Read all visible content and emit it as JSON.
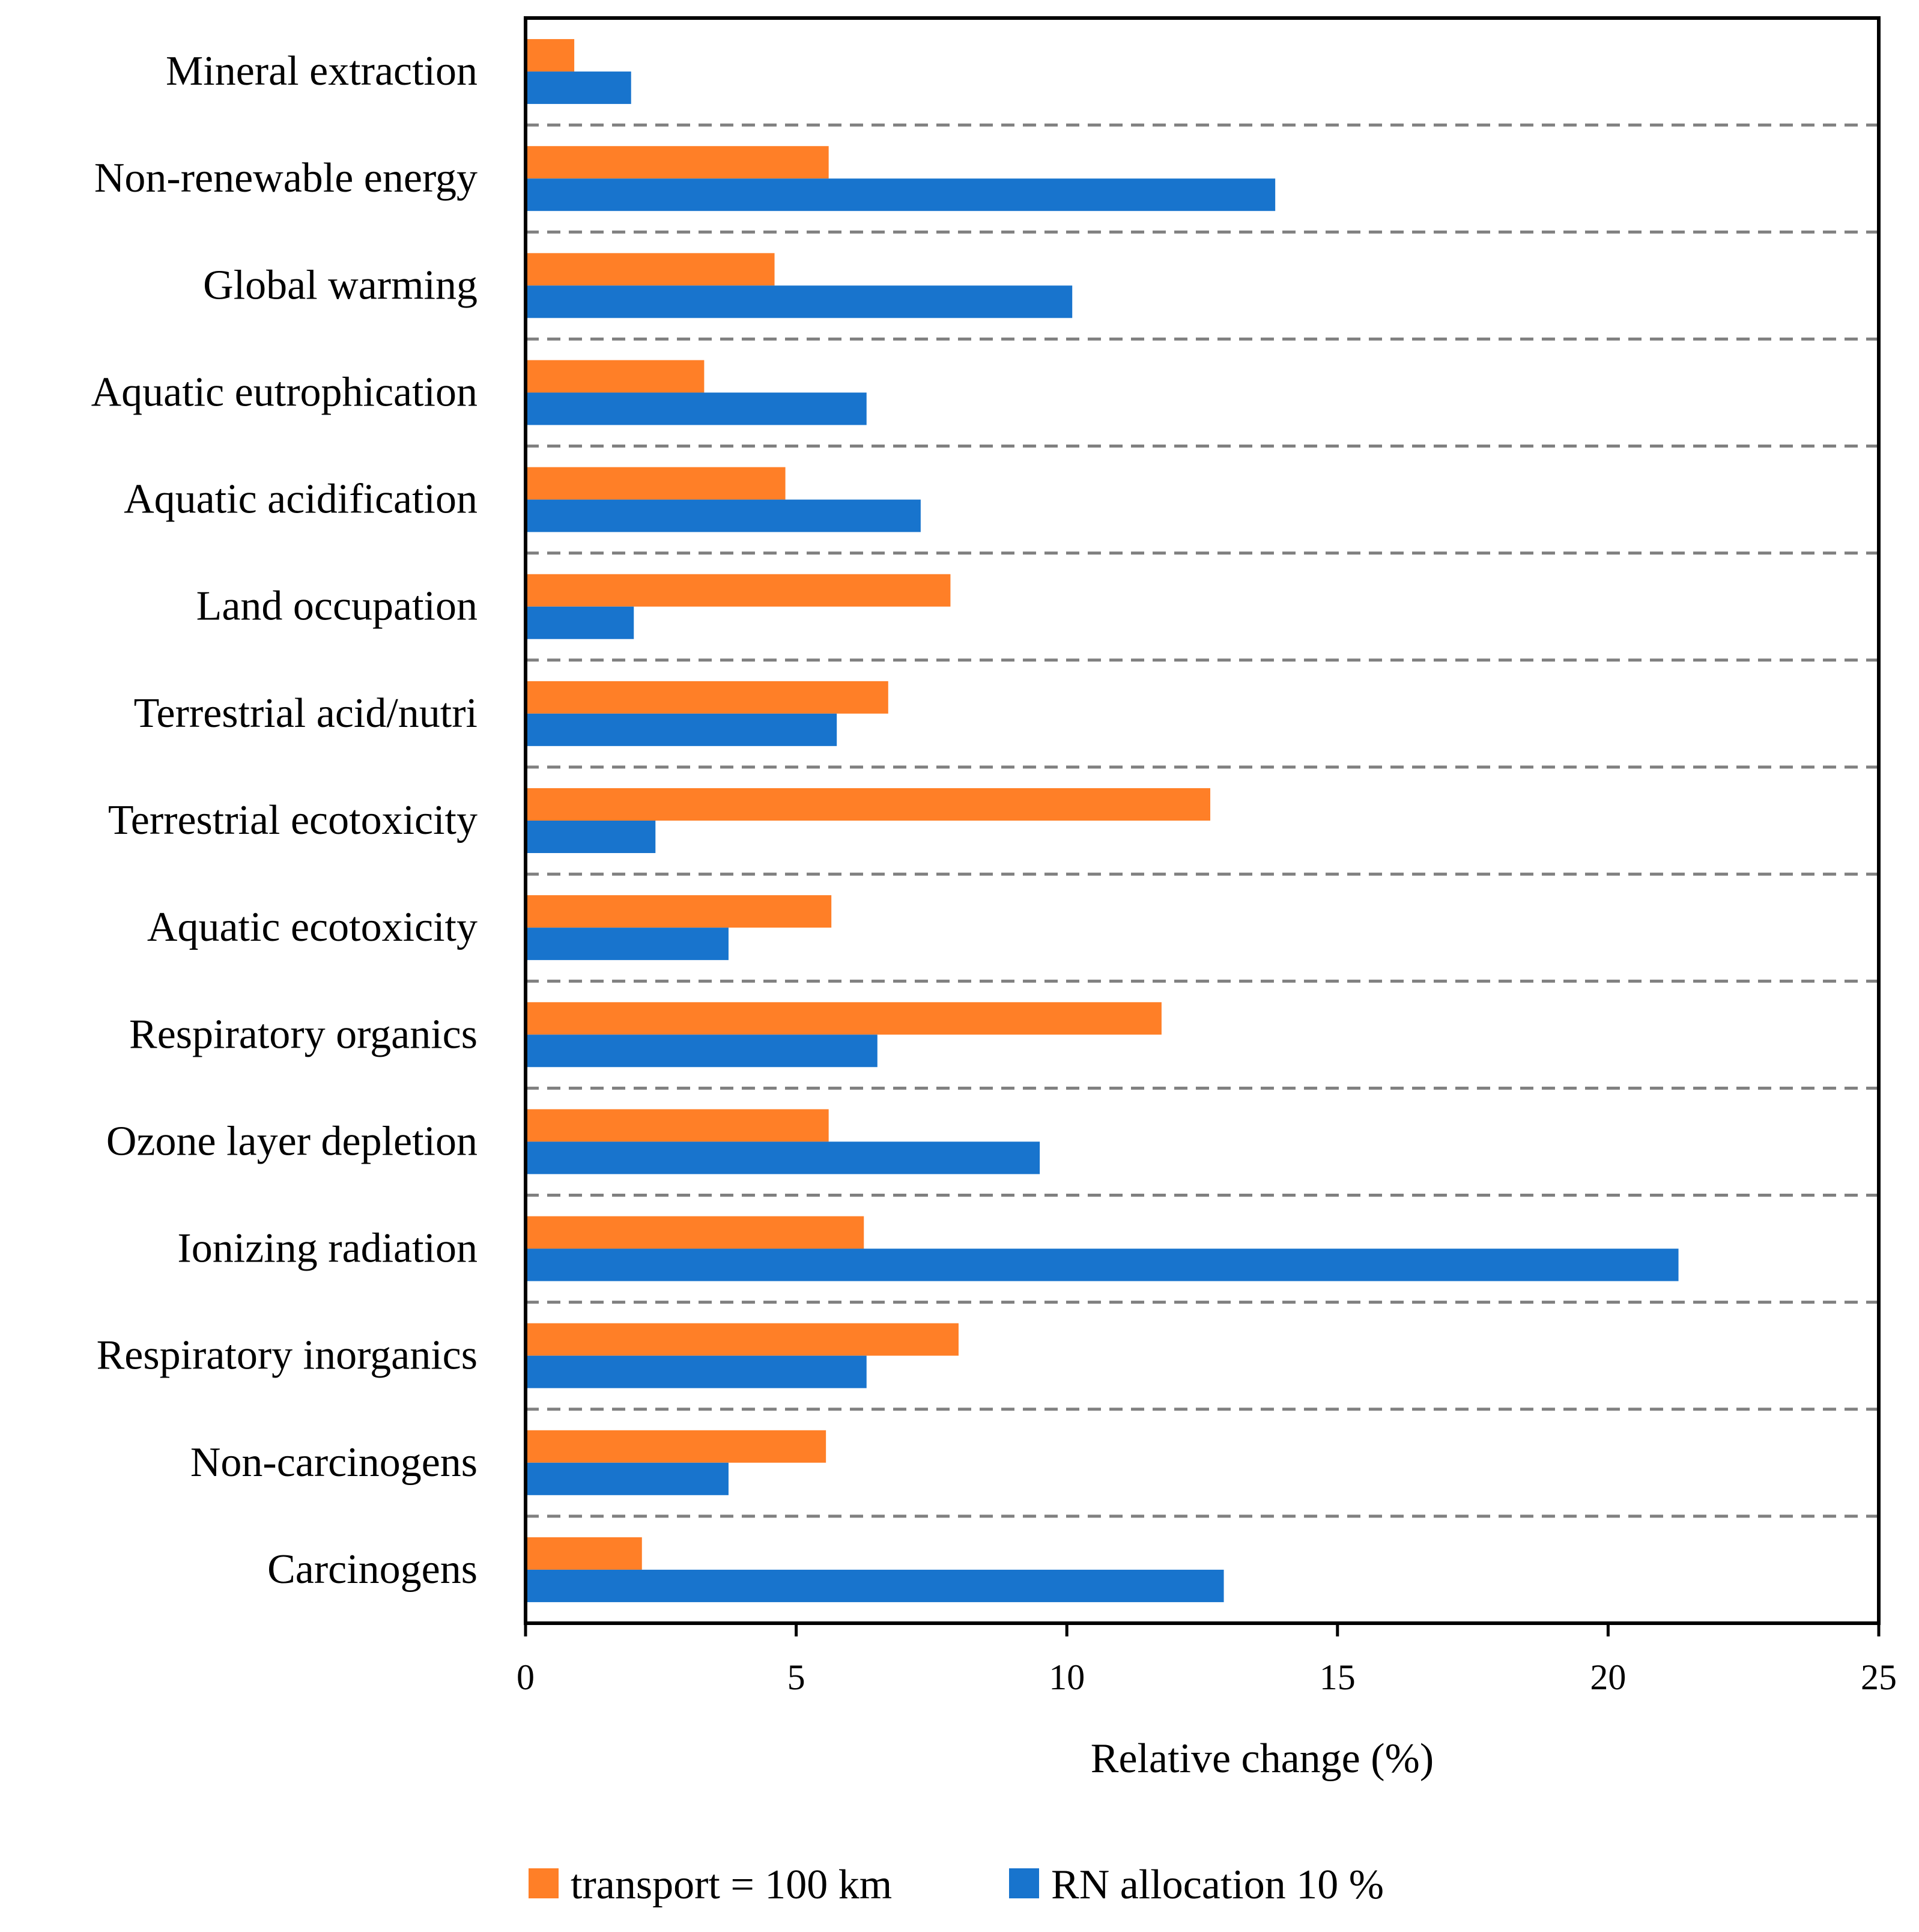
{
  "chart_data": {
    "type": "bar",
    "orientation": "horizontal",
    "title": "",
    "xlabel": "Relative change (%)",
    "ylabel": "",
    "xlim": [
      0,
      25
    ],
    "xticks": [
      "0",
      "5",
      "10",
      "15",
      "20",
      "25"
    ],
    "categories": [
      "Mineral extraction",
      "Non-renewable energy",
      "Global warming",
      "Aquatic eutrophication",
      "Aquatic acidification",
      "Land occupation",
      "Terrestrial acid/nutri",
      "Terrestrial ecotoxicity",
      "Aquatic ecotoxicity",
      "Respiratory organics",
      "Ozone layer depletion",
      "Ionizing radiation",
      "Respiratory inorganics",
      "Non-carcinogens",
      "Carcinogens"
    ],
    "series": [
      {
        "name": "transport = 100 km",
        "color": "#FF7F27",
        "values": [
          0.9,
          5.6,
          4.6,
          3.3,
          4.8,
          7.85,
          6.7,
          12.65,
          5.65,
          11.75,
          5.6,
          6.25,
          8.0,
          5.55,
          2.15
        ]
      },
      {
        "name": "RN allocation 10 %",
        "color": "#1874CD",
        "values": [
          1.95,
          13.85,
          10.1,
          6.3,
          7.3,
          2.0,
          5.75,
          2.4,
          3.75,
          6.5,
          9.5,
          21.3,
          6.3,
          3.75,
          12.9
        ]
      }
    ],
    "grid": "dashed separators between categories",
    "legend_position": "bottom"
  }
}
